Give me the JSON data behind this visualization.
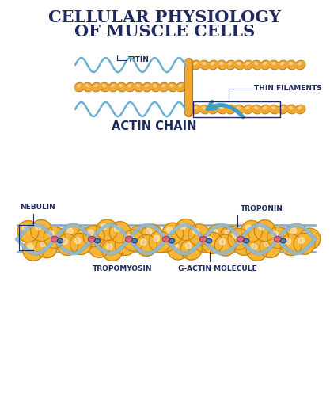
{
  "title_line1": "CELLULAR PHYSIOLOGY",
  "title_line2": "OF MUSCLE CELLS",
  "title_color": "#1e2a5e",
  "title_fontsize": 15,
  "bg_color": "#ffffff",
  "actin_chain_label": "ACTIN CHAIN",
  "label_titin": "TITIN",
  "label_thin_filaments": "THIN FILAMENTS",
  "label_nebulin": "NEBULIN",
  "label_troponin": "TROPONIN",
  "label_tropomyosin": "TROPOMYOSIN",
  "label_gactin": "G-ACTIN MOLECULE",
  "filament_color": "#f0a830",
  "filament_outline": "#b87818",
  "titin_color": "#6ab0d0",
  "arrow_color": "#3a9fc8",
  "label_color": "#1e2a5e",
  "label_fontsize": 6.5,
  "actin_ball_color": "#f5b535",
  "actin_ball_outline": "#c88010",
  "tropomyosin_color": "#90bcd8",
  "troponin_pink": "#e06878",
  "troponin_blue": "#5080b8"
}
